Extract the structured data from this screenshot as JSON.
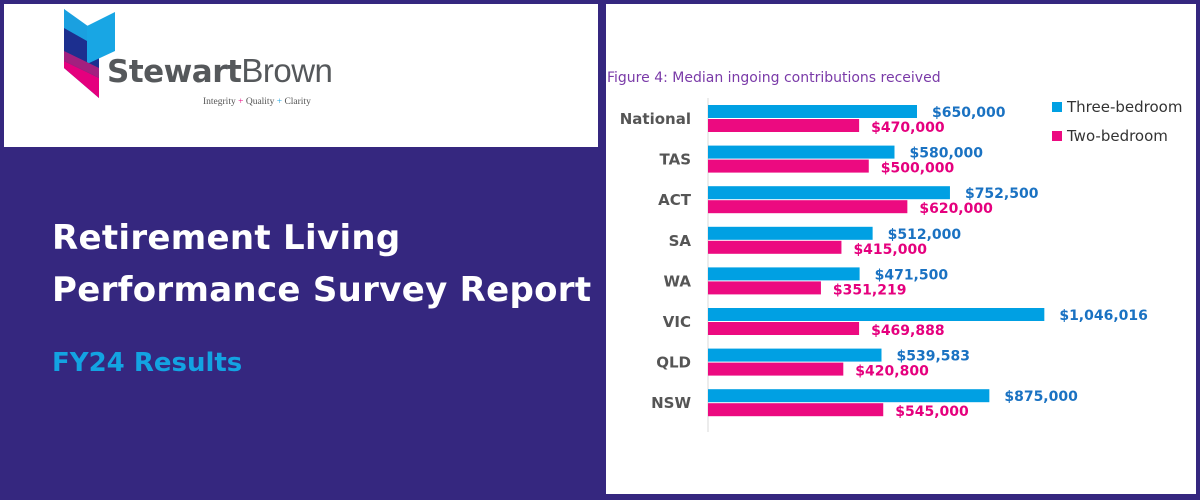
{
  "logo": {
    "name_bold": "Stewart",
    "name_light": "Brown",
    "tagline": [
      "Integrity",
      "Quality",
      "Clarity"
    ],
    "tagline_sep": "+"
  },
  "report": {
    "title_line1": "Retirement Living",
    "title_line2": "Performance Survey Report",
    "subtitle": "FY24 Results"
  },
  "colors": {
    "background": "#35277f",
    "three_bedroom": "#00a0e3",
    "two_bedroom": "#ec0a80",
    "three_label": "#1a72c2",
    "two_label": "#e5007e",
    "subtitle": "#13a3e2"
  },
  "chart_data": {
    "type": "bar",
    "orientation": "horizontal",
    "title": "Figure 4: Median ingoing contributions received",
    "categories": [
      "National",
      "TAS",
      "ACT",
      "SA",
      "WA",
      "VIC",
      "QLD",
      "NSW"
    ],
    "series": [
      {
        "name": "Three-bedroom",
        "values": [
          650000,
          580000,
          752500,
          512000,
          471500,
          1046016,
          539583,
          875000
        ],
        "labels": [
          "$650,000",
          "$580,000",
          "$752,500",
          "$512,000",
          "$471,500",
          "$1,046,016",
          "$539,583",
          "$875,000"
        ]
      },
      {
        "name": "Two-bedroom",
        "values": [
          470000,
          500000,
          620000,
          415000,
          351219,
          469888,
          420800,
          545000
        ],
        "labels": [
          "$470,000",
          "$500,000",
          "$620,000",
          "$415,000",
          "$351,219",
          "$469,888",
          "$420,800",
          "$545,000"
        ]
      }
    ],
    "legend": "top-right",
    "grid": false,
    "xaxis_visible": false
  }
}
